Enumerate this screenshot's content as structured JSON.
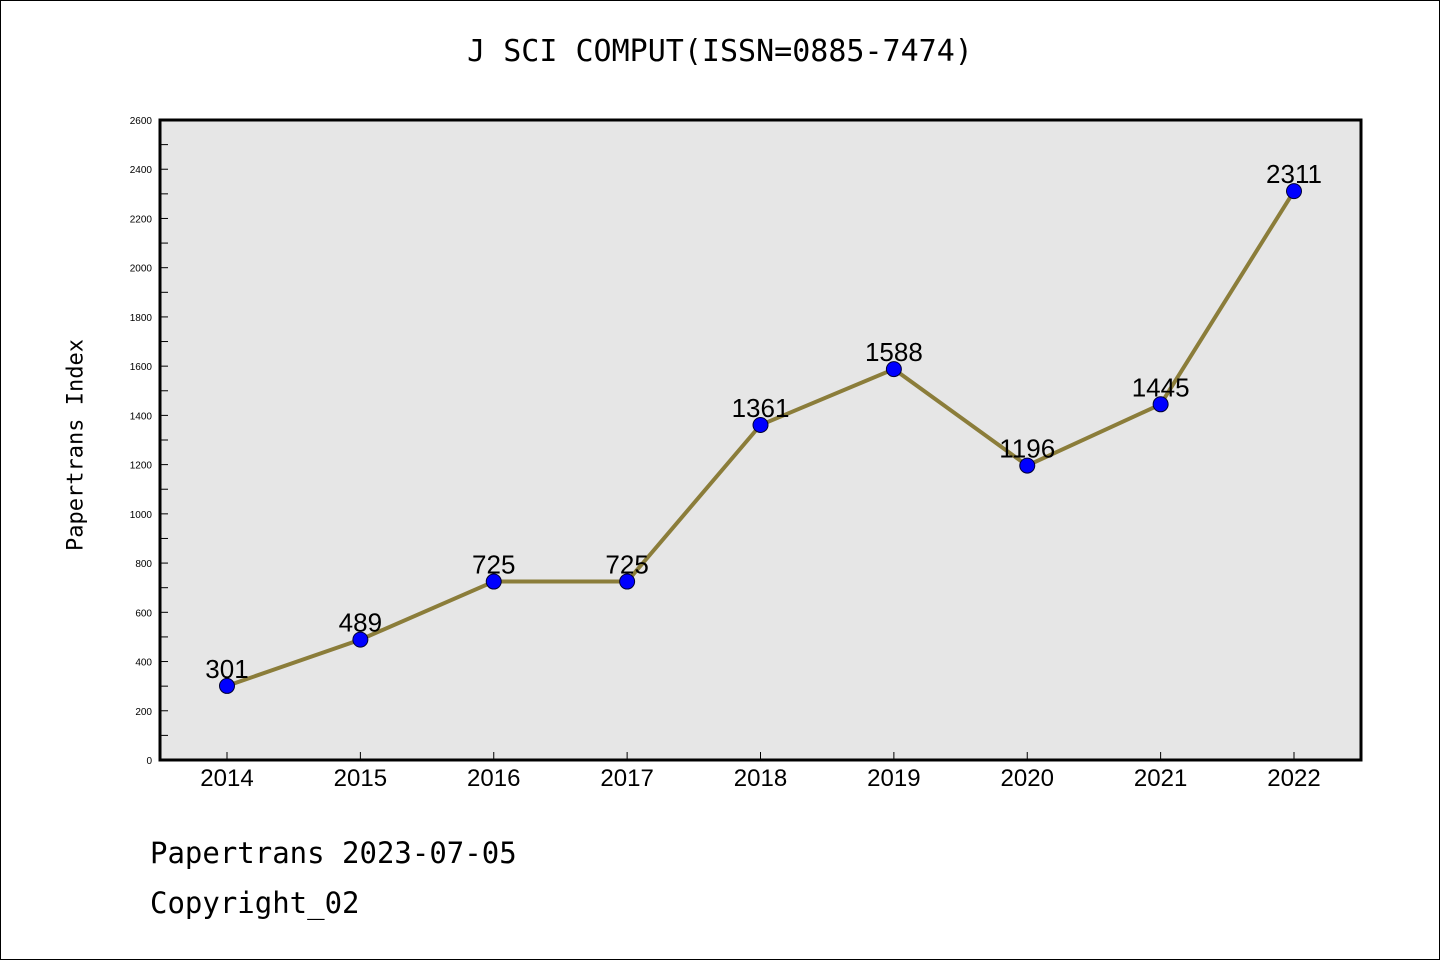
{
  "chart_data": {
    "type": "line",
    "title": "J SCI COMPUT(ISSN=0885-7474)",
    "ylabel": "Papertrans Index",
    "xlabel": "",
    "categories": [
      "2014",
      "2015",
      "2016",
      "2017",
      "2018",
      "2019",
      "2020",
      "2021",
      "2022"
    ],
    "series": [
      {
        "values": [
          301,
          489,
          725,
          725,
          1361,
          1588,
          1196,
          1445,
          2311
        ],
        "data_labels": [
          "301",
          "489",
          "725",
          "725",
          "1361",
          "1588",
          "1196",
          "1445",
          "2311"
        ]
      }
    ],
    "ylim": [
      0,
      2600
    ],
    "yticks": [
      "0",
      "200",
      "400",
      "600",
      "800",
      "1000",
      "1200",
      "1400",
      "1600",
      "1800",
      "2000",
      "2200",
      "2400",
      "2600"
    ],
    "grid": false,
    "colors": {
      "line": "#8b7d3a",
      "marker": "#0000ff",
      "plot_background": "#e6e6e6"
    }
  },
  "footer": {
    "date_line": "Papertrans 2023-07-05",
    "copyright": "Copyright_02"
  }
}
